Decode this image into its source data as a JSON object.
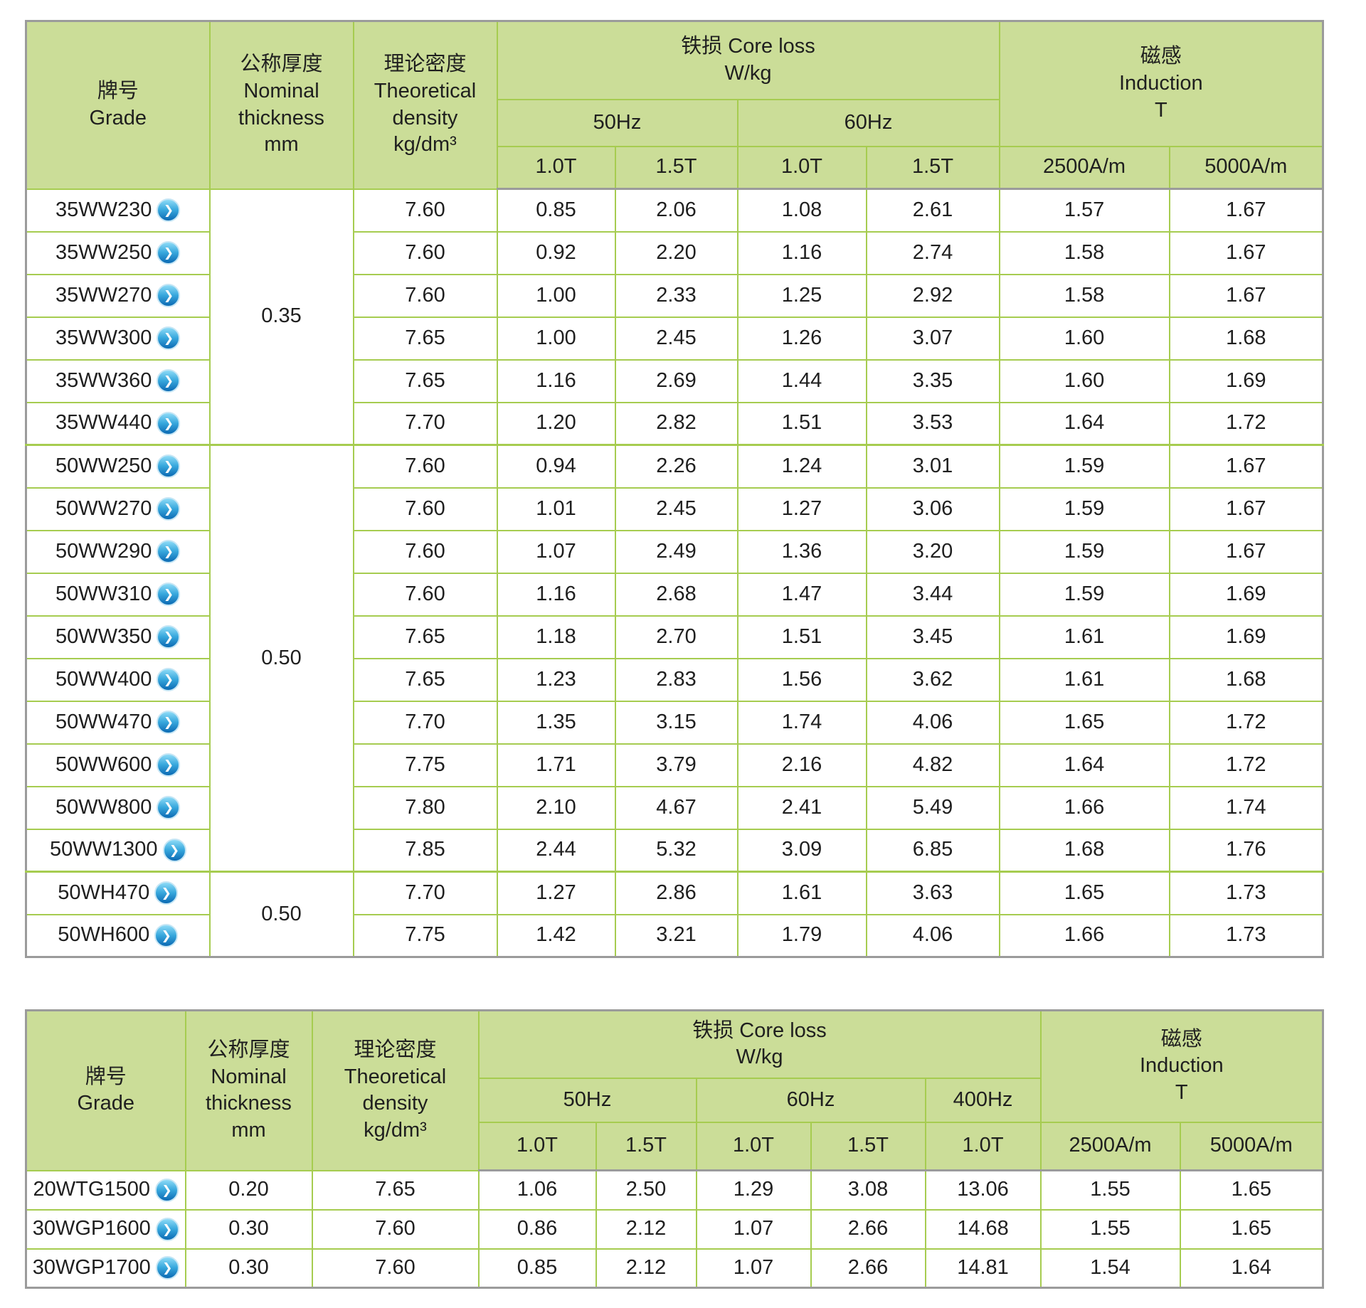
{
  "icons": {
    "go_glyph": "❯",
    "go_semantic": "chevron-right-circle-icon"
  },
  "colors": {
    "grid_green": "#a6cc50",
    "header_green": "#cbdd98",
    "outer_gray": "#9b9b9b",
    "icon_blue": "#1d87c9"
  },
  "table1": {
    "header": {
      "grade": "牌号\nGrade",
      "thickness": "公称厚度\nNominal\nthickness\nmm",
      "density": "理论密度\nTheoretical\ndensity\nkg/dm³",
      "core_loss": "铁损 Core loss\nW/kg",
      "hz50": "50Hz",
      "hz60": "60Hz",
      "induction": "磁感\nInduction\nT",
      "t10": "1.0T",
      "t15": "1.5T",
      "a2500": "2500A/m",
      "a5000": "5000A/m"
    },
    "thickness_groups": [
      {
        "value": "0.35",
        "start": 0,
        "span": 6
      },
      {
        "value": "0.50",
        "start": 6,
        "span": 10
      },
      {
        "value": "0.50",
        "start": 16,
        "span": 2
      }
    ],
    "rows": [
      {
        "grade": "35WW230",
        "values": [
          "7.60",
          "0.85",
          "2.06",
          "1.08",
          "2.61",
          "1.57",
          "1.67"
        ]
      },
      {
        "grade": "35WW250",
        "values": [
          "7.60",
          "0.92",
          "2.20",
          "1.16",
          "2.74",
          "1.58",
          "1.67"
        ]
      },
      {
        "grade": "35WW270",
        "values": [
          "7.60",
          "1.00",
          "2.33",
          "1.25",
          "2.92",
          "1.58",
          "1.67"
        ]
      },
      {
        "grade": "35WW300",
        "values": [
          "7.65",
          "1.00",
          "2.45",
          "1.26",
          "3.07",
          "1.60",
          "1.68"
        ]
      },
      {
        "grade": "35WW360",
        "values": [
          "7.65",
          "1.16",
          "2.69",
          "1.44",
          "3.35",
          "1.60",
          "1.69"
        ]
      },
      {
        "grade": "35WW440",
        "values": [
          "7.70",
          "1.20",
          "2.82",
          "1.51",
          "3.53",
          "1.64",
          "1.72"
        ]
      },
      {
        "grade": "50WW250",
        "values": [
          "7.60",
          "0.94",
          "2.26",
          "1.24",
          "3.01",
          "1.59",
          "1.67"
        ]
      },
      {
        "grade": "50WW270",
        "values": [
          "7.60",
          "1.01",
          "2.45",
          "1.27",
          "3.06",
          "1.59",
          "1.67"
        ]
      },
      {
        "grade": "50WW290",
        "values": [
          "7.60",
          "1.07",
          "2.49",
          "1.36",
          "3.20",
          "1.59",
          "1.67"
        ]
      },
      {
        "grade": "50WW310",
        "values": [
          "7.60",
          "1.16",
          "2.68",
          "1.47",
          "3.44",
          "1.59",
          "1.69"
        ]
      },
      {
        "grade": "50WW350",
        "values": [
          "7.65",
          "1.18",
          "2.70",
          "1.51",
          "3.45",
          "1.61",
          "1.69"
        ]
      },
      {
        "grade": "50WW400",
        "values": [
          "7.65",
          "1.23",
          "2.83",
          "1.56",
          "3.62",
          "1.61",
          "1.68"
        ]
      },
      {
        "grade": "50WW470",
        "values": [
          "7.70",
          "1.35",
          "3.15",
          "1.74",
          "4.06",
          "1.65",
          "1.72"
        ]
      },
      {
        "grade": "50WW600",
        "values": [
          "7.75",
          "1.71",
          "3.79",
          "2.16",
          "4.82",
          "1.64",
          "1.72"
        ]
      },
      {
        "grade": "50WW800",
        "values": [
          "7.80",
          "2.10",
          "4.67",
          "2.41",
          "5.49",
          "1.66",
          "1.74"
        ]
      },
      {
        "grade": "50WW1300",
        "values": [
          "7.85",
          "2.44",
          "5.32",
          "3.09",
          "6.85",
          "1.68",
          "1.76"
        ]
      },
      {
        "grade": "50WH470",
        "values": [
          "7.70",
          "1.27",
          "2.86",
          "1.61",
          "3.63",
          "1.65",
          "1.73"
        ]
      },
      {
        "grade": "50WH600",
        "values": [
          "7.75",
          "1.42",
          "3.21",
          "1.79",
          "4.06",
          "1.66",
          "1.73"
        ]
      }
    ]
  },
  "table2": {
    "header": {
      "grade": "牌号\nGrade",
      "thickness": "公称厚度\nNominal\nthickness\nmm",
      "density": "理论密度\nTheoretical\ndensity\nkg/dm³",
      "core_loss": "铁损 Core loss\nW/kg",
      "hz50": "50Hz",
      "hz60": "60Hz",
      "hz400": "400Hz",
      "induction": "磁感\nInduction\nT",
      "t10": "1.0T",
      "t15": "1.5T",
      "a2500": "2500A/m",
      "a5000": "5000A/m"
    },
    "rows": [
      {
        "grade": "20WTG1500",
        "thickness": "0.20",
        "values": [
          "7.65",
          "1.06",
          "2.50",
          "1.29",
          "3.08",
          "13.06",
          "1.55",
          "1.65"
        ]
      },
      {
        "grade": "30WGP1600",
        "thickness": "0.30",
        "values": [
          "7.60",
          "0.86",
          "2.12",
          "1.07",
          "2.66",
          "14.68",
          "1.55",
          "1.65"
        ]
      },
      {
        "grade": "30WGP1700",
        "thickness": "0.30",
        "values": [
          "7.60",
          "0.85",
          "2.12",
          "1.07",
          "2.66",
          "14.81",
          "1.54",
          "1.64"
        ]
      }
    ]
  }
}
